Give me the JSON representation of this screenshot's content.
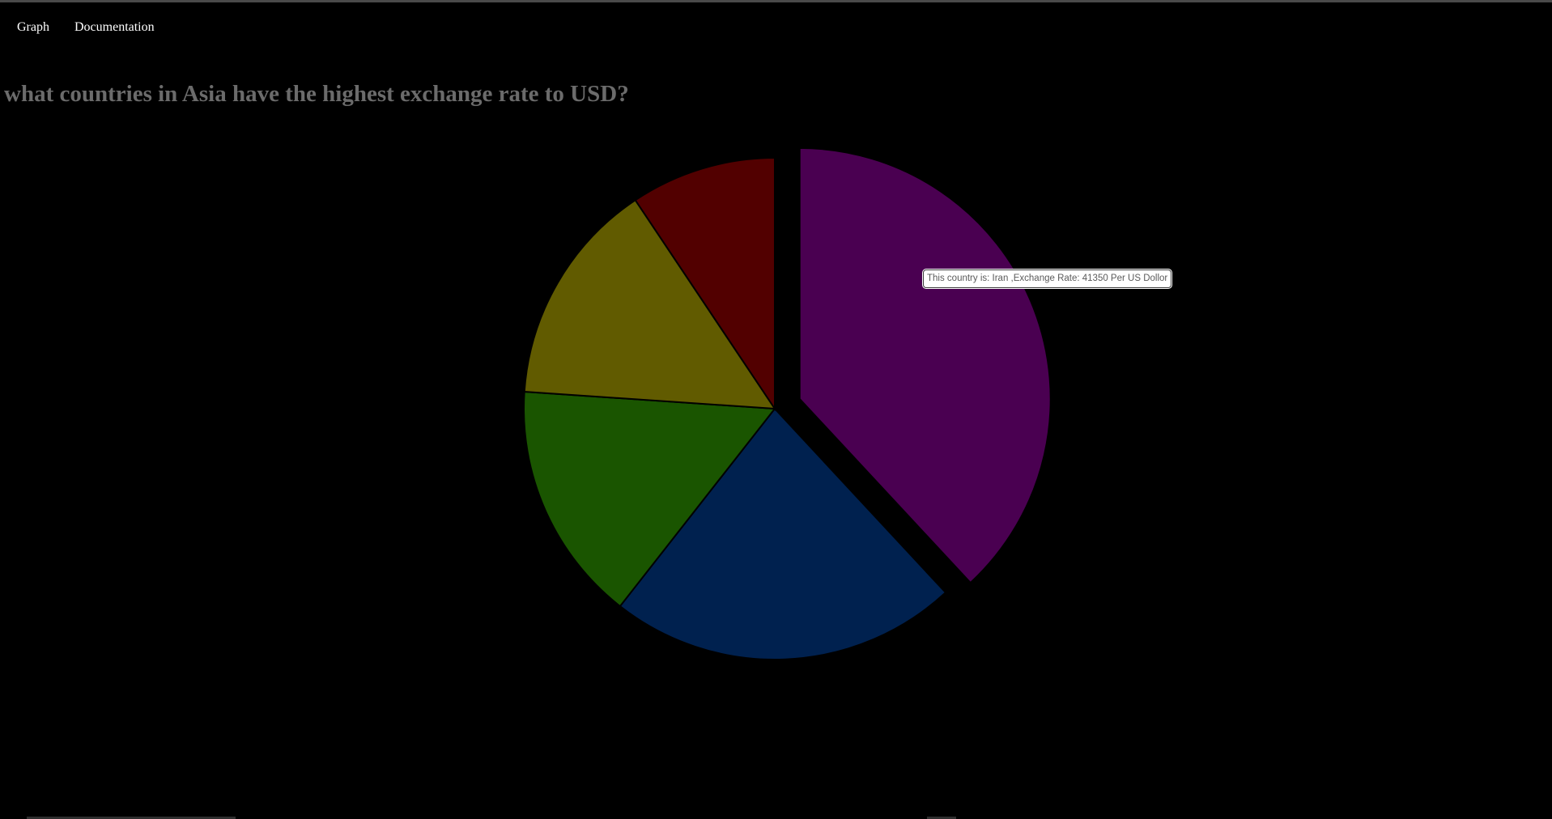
{
  "nav": {
    "graph_label": "Graph",
    "documentation_label": "Documentation"
  },
  "chart_data": {
    "type": "pie",
    "title": "what countries in Asia have the highest exchange rate to USD?",
    "slices": [
      {
        "color": "#4a0051",
        "share": 0.398
      },
      {
        "color": "#00214f",
        "share": 0.235
      },
      {
        "color": "#1a5500",
        "share": 0.162
      },
      {
        "color": "#615b00",
        "share": 0.152
      },
      {
        "color": "#520000",
        "share": 0.098
      }
    ],
    "highlighted_slice": 0,
    "tooltip": "This country is: Iran ,Exchange Rate: 41350 Per US Dollor"
  }
}
